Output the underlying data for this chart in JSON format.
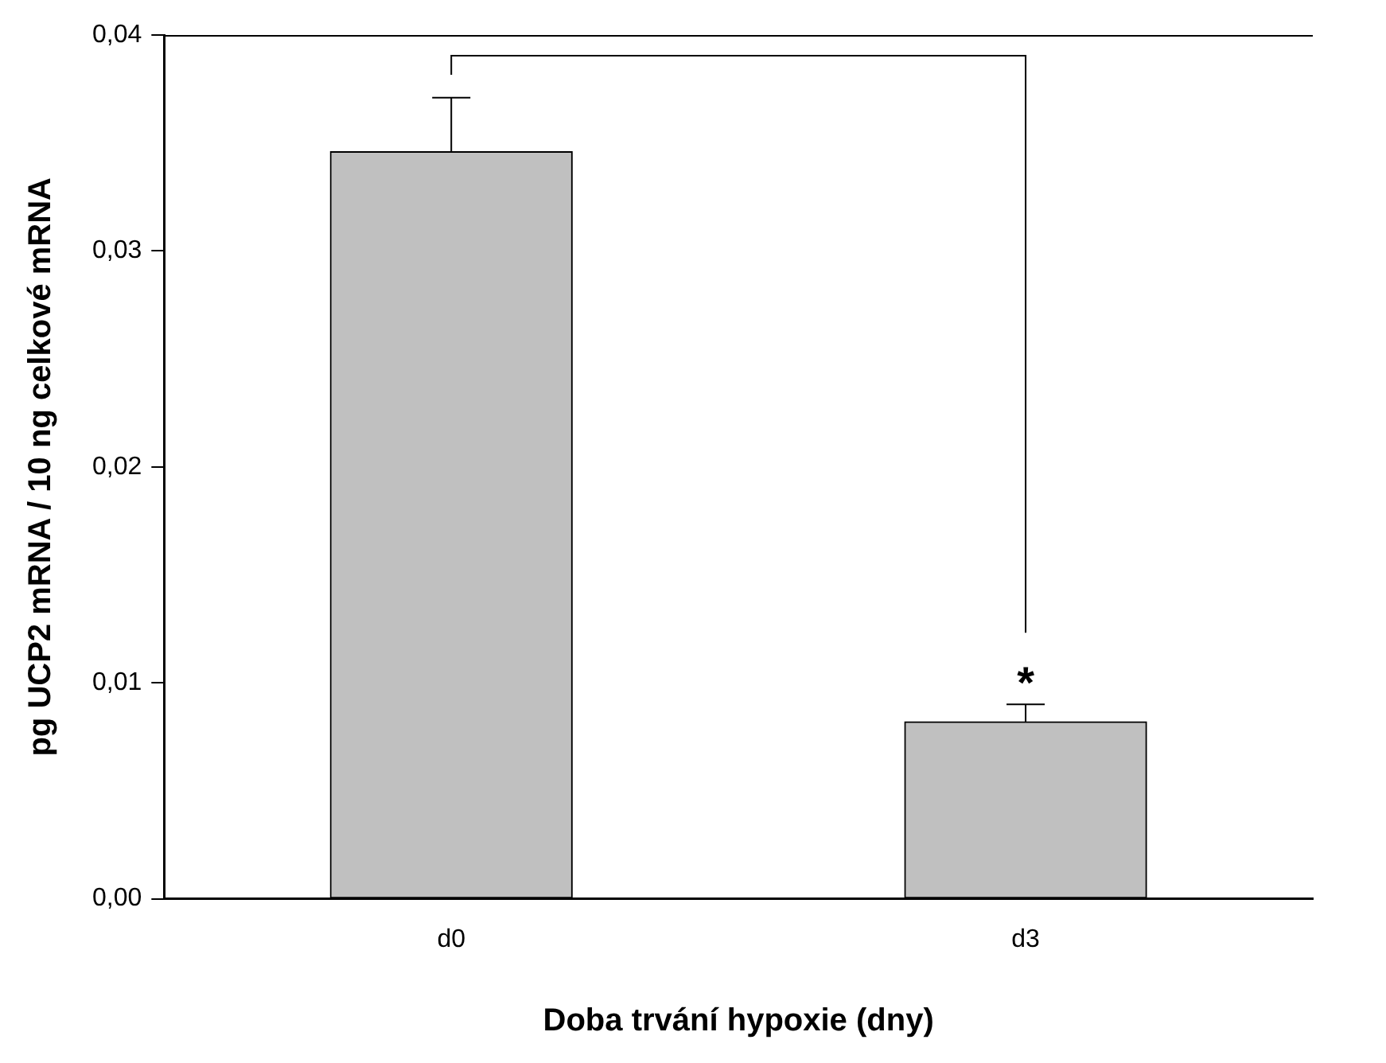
{
  "chart_data": {
    "type": "bar",
    "xlabel": "Doba trvání hypoxie (dny)",
    "ylabel": "pg UCP2 mRNA / 10 ng celkové mRNA",
    "categories": [
      "d0",
      "d3"
    ],
    "values": [
      0.0346,
      0.0082
    ],
    "color": "#c0c0c0",
    "errors": [
      0.0025,
      0.0008
    ],
    "ylim": [
      0,
      0.04
    ],
    "yticks": [
      {
        "value": 0,
        "label": "0,00"
      },
      {
        "value": 0.01,
        "label": "0,01"
      },
      {
        "value": 0.02,
        "label": "0,02"
      },
      {
        "value": 0.03,
        "label": "0,03"
      },
      {
        "value": 0.04,
        "label": "0,04"
      }
    ],
    "annotations": [
      "*"
    ],
    "grid": false,
    "legend": false
  }
}
